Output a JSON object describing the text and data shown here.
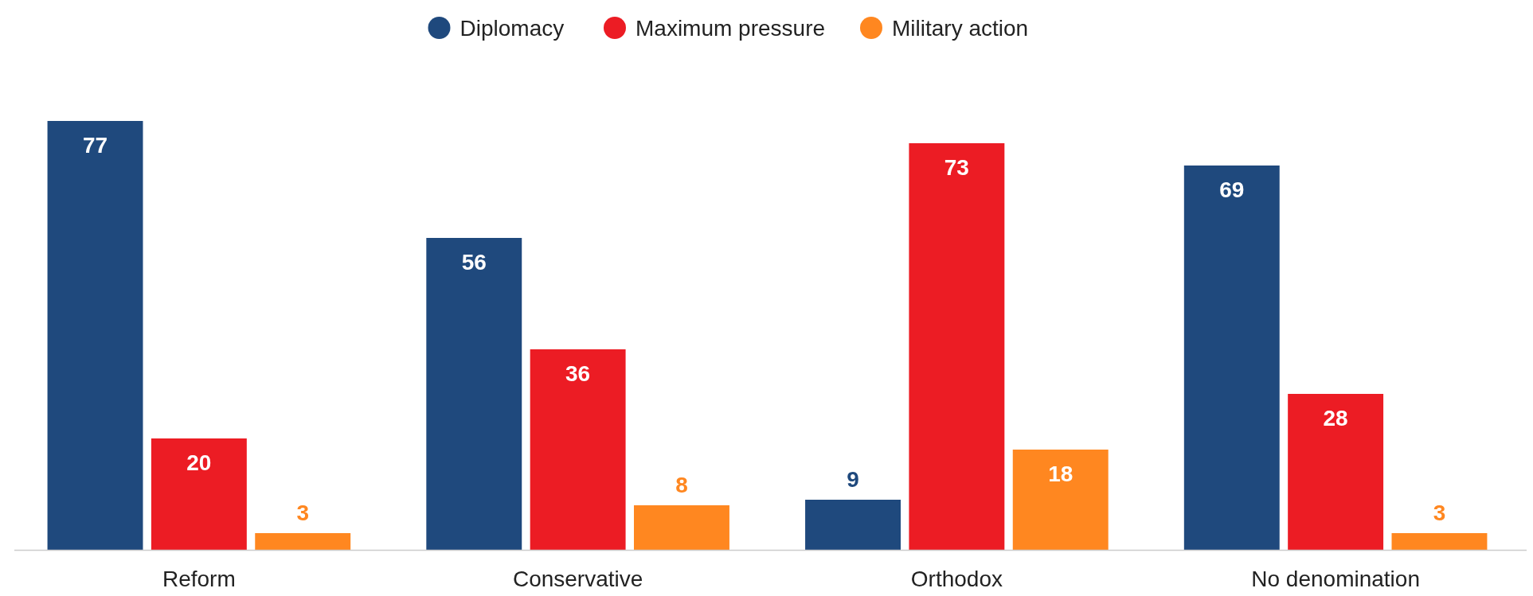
{
  "chart_data": {
    "type": "bar",
    "categories": [
      "Reform",
      "Conservative",
      "Orthodox",
      "No denomination"
    ],
    "series": [
      {
        "name": "Diplomacy",
        "color": "#1f497d",
        "values": [
          77,
          56,
          9,
          69
        ]
      },
      {
        "name": "Maximum pressure",
        "color": "#ec1c24",
        "values": [
          20,
          36,
          73,
          28
        ]
      },
      {
        "name": "Military action",
        "color": "#ff8720",
        "values": [
          3,
          8,
          18,
          3
        ]
      }
    ],
    "data_labels": true,
    "legend": "top"
  }
}
